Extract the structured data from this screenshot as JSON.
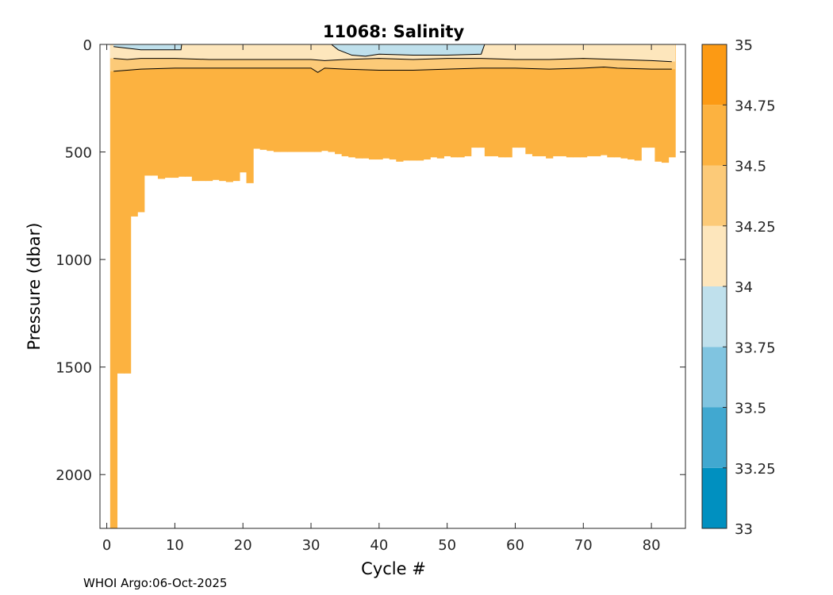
{
  "chart_data": {
    "type": "heatmap",
    "title": "11068:  Salinity",
    "xlabel": "Cycle #",
    "ylabel": "Pressure (dbar)",
    "xlim": [
      -1,
      85
    ],
    "ylim": [
      2250,
      0
    ],
    "y_reversed": true,
    "xticks": [
      0,
      10,
      20,
      30,
      40,
      50,
      60,
      70,
      80
    ],
    "yticks": [
      0,
      500,
      1000,
      1500,
      2000
    ],
    "colorbar": {
      "ticks": [
        "33",
        "33.25",
        "33.5",
        "33.75",
        "34",
        "34.25",
        "34.5",
        "34.75",
        "35"
      ],
      "levels": [
        33,
        33.25,
        33.5,
        33.75,
        34,
        34.25,
        34.5,
        34.75,
        35
      ],
      "colors": [
        "#0090c0",
        "#41a8d0",
        "#80c4e0",
        "#bfe0ec",
        "#fde6bc",
        "#fcca78",
        "#fcb240",
        "#fc9a14"
      ]
    },
    "profile_max_pressure": {
      "cycles": [
        1,
        2,
        3,
        4,
        5,
        6,
        7,
        8,
        9,
        10,
        11,
        12,
        13,
        14,
        15,
        16,
        17,
        18,
        19,
        20,
        21,
        22,
        23,
        24,
        25,
        26,
        27,
        28,
        29,
        30,
        31,
        32,
        33,
        34,
        35,
        36,
        37,
        38,
        39,
        40,
        41,
        42,
        43,
        44,
        45,
        46,
        47,
        48,
        49,
        50,
        51,
        52,
        53,
        54,
        55,
        56,
        57,
        58,
        59,
        60,
        61,
        62,
        63,
        64,
        65,
        66,
        67,
        68,
        69,
        70,
        71,
        72,
        73,
        74,
        75,
        76,
        77,
        78,
        79,
        80,
        81,
        82,
        83
      ],
      "pressure": [
        2250,
        1530,
        1530,
        800,
        780,
        610,
        610,
        625,
        620,
        620,
        615,
        615,
        635,
        635,
        635,
        630,
        635,
        640,
        635,
        595,
        645,
        485,
        490,
        495,
        500,
        500,
        500,
        500,
        500,
        500,
        500,
        495,
        500,
        510,
        520,
        525,
        530,
        530,
        535,
        535,
        530,
        535,
        545,
        540,
        540,
        540,
        535,
        525,
        530,
        520,
        525,
        525,
        520,
        480,
        480,
        520,
        520,
        525,
        525,
        480,
        480,
        510,
        520,
        520,
        530,
        520,
        520,
        525,
        525,
        525,
        520,
        520,
        515,
        525,
        525,
        530,
        535,
        540,
        480,
        480,
        545,
        550,
        525
      ]
    },
    "contours": [
      {
        "level": 34.0,
        "cycles": [
          1,
          5,
          10,
          10.9,
          11,
          33,
          34,
          36,
          38,
          40,
          45,
          50,
          55,
          55.5
        ],
        "pressure": [
          10,
          25,
          25,
          25,
          0,
          0,
          25,
          50,
          55,
          45,
          50,
          50,
          45,
          0
        ]
      },
      {
        "level": 34.25,
        "cycles": [
          1,
          3,
          5,
          10,
          15,
          20,
          25,
          30,
          32,
          35,
          40,
          45,
          50,
          55,
          60,
          65,
          70,
          75,
          80,
          83
        ],
        "pressure": [
          65,
          70,
          65,
          65,
          70,
          70,
          70,
          70,
          75,
          70,
          65,
          70,
          65,
          65,
          70,
          70,
          65,
          70,
          75,
          80
        ]
      },
      {
        "level": 34.5,
        "cycles": [
          1,
          3,
          5,
          10,
          15,
          20,
          25,
          30,
          31,
          32,
          35,
          40,
          45,
          50,
          55,
          60,
          65,
          70,
          73,
          75,
          80,
          83
        ],
        "pressure": [
          125,
          120,
          115,
          110,
          110,
          110,
          110,
          110,
          130,
          110,
          115,
          120,
          120,
          115,
          110,
          110,
          115,
          110,
          105,
          110,
          115,
          115
        ]
      }
    ]
  },
  "footer": "WHOI Argo:06-Oct-2025"
}
